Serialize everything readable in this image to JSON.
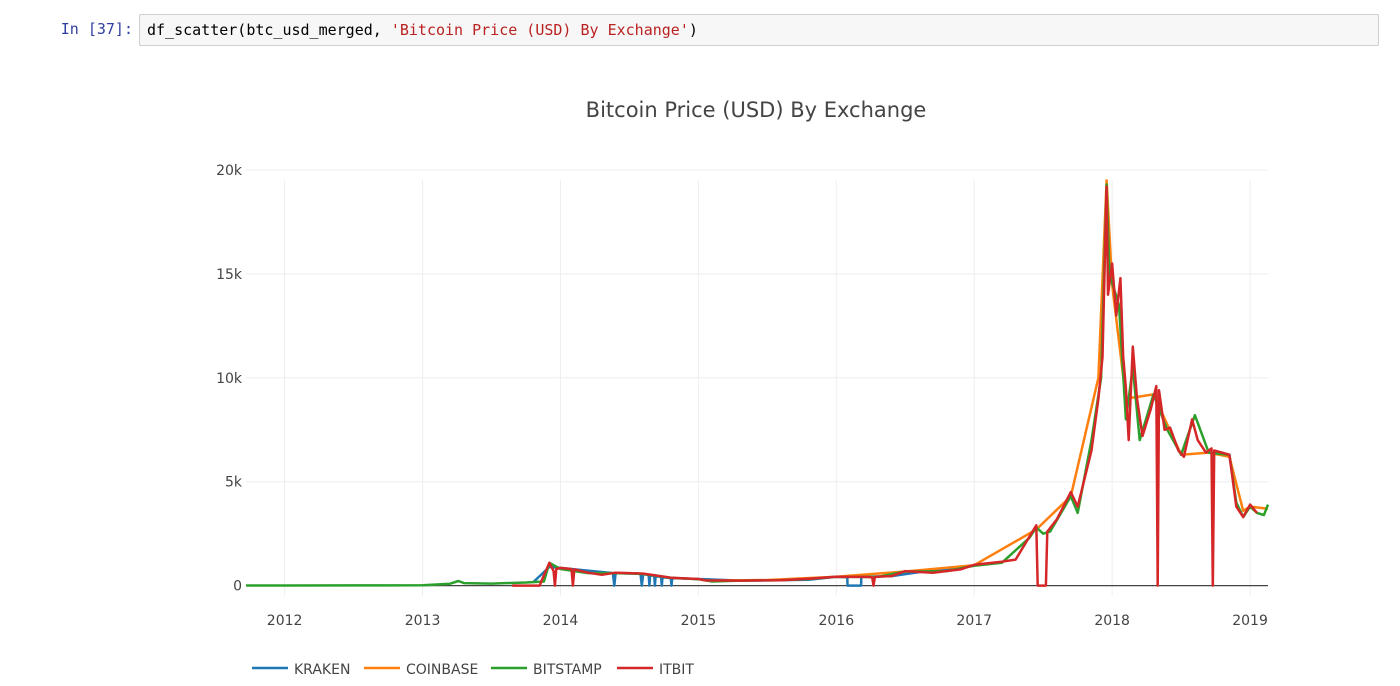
{
  "cell": {
    "prompt": "In [37]:",
    "code_prefix": "df_scatter(btc_usd_merged, ",
    "code_string": "'Bitcoin Price (USD) By Exchange'",
    "code_suffix": ")"
  },
  "chart_data": {
    "type": "line",
    "title": "Bitcoin Price (USD) By Exchange",
    "xlabel": "",
    "ylabel": "",
    "x_ticks": [
      "2012",
      "2013",
      "2014",
      "2015",
      "2016",
      "2017",
      "2018",
      "2019"
    ],
    "y_ticks": [
      "0",
      "5k",
      "10k",
      "15k",
      "20k"
    ],
    "xlim": [
      2011.72,
      2019.13
    ],
    "ylim": [
      -500,
      20000
    ],
    "grid": true,
    "legend_position": "bottom-left",
    "series": [
      {
        "name": "KRAKEN",
        "color": "#1f77b4",
        "points": [
          [
            2013.8,
            150
          ],
          [
            2013.92,
            900
          ],
          [
            2014.05,
            820
          ],
          [
            2014.38,
            600
          ],
          [
            2014.39,
            0
          ],
          [
            2014.4,
            600
          ],
          [
            2014.58,
            580
          ],
          [
            2014.59,
            0
          ],
          [
            2014.6,
            560
          ],
          [
            2014.64,
            500
          ],
          [
            2014.645,
            0
          ],
          [
            2014.65,
            480
          ],
          [
            2014.68,
            480
          ],
          [
            2014.685,
            0
          ],
          [
            2014.69,
            460
          ],
          [
            2014.73,
            420
          ],
          [
            2014.735,
            0
          ],
          [
            2014.74,
            400
          ],
          [
            2014.8,
            360
          ],
          [
            2014.805,
            0
          ],
          [
            2014.81,
            360
          ],
          [
            2015.0,
            320
          ],
          [
            2015.3,
            240
          ],
          [
            2015.8,
            280
          ],
          [
            2016.0,
            430
          ],
          [
            2016.08,
            400
          ],
          [
            2016.081,
            0
          ],
          [
            2016.18,
            0
          ],
          [
            2016.181,
            420
          ],
          [
            2016.4,
            460
          ],
          [
            2016.6,
            650
          ],
          [
            2017.0,
            960
          ]
        ]
      },
      {
        "name": "COINBASE",
        "color": "#ff7f0e",
        "points": [
          [
            2015.08,
            230
          ],
          [
            2015.5,
            270
          ],
          [
            2016.0,
            430
          ],
          [
            2016.5,
            680
          ],
          [
            2017.0,
            980
          ],
          [
            2017.45,
            2700
          ],
          [
            2017.7,
            4300
          ],
          [
            2017.9,
            10000
          ],
          [
            2017.96,
            19500
          ],
          [
            2018.0,
            14500
          ],
          [
            2018.1,
            9000
          ],
          [
            2018.3,
            9200
          ],
          [
            2018.5,
            6300
          ],
          [
            2018.7,
            6400
          ],
          [
            2018.85,
            6200
          ],
          [
            2018.95,
            3600
          ],
          [
            2019.0,
            3800
          ],
          [
            2019.13,
            3700
          ]
        ]
      },
      {
        "name": "BITSTAMP",
        "color": "#2ca02c",
        "points": [
          [
            2011.72,
            5
          ],
          [
            2012.0,
            6
          ],
          [
            2012.5,
            8
          ],
          [
            2013.0,
            15
          ],
          [
            2013.2,
            90
          ],
          [
            2013.26,
            220
          ],
          [
            2013.3,
            120
          ],
          [
            2013.5,
            95
          ],
          [
            2013.75,
            150
          ],
          [
            2013.88,
            200
          ],
          [
            2013.92,
            1100
          ],
          [
            2014.0,
            800
          ],
          [
            2014.2,
            600
          ],
          [
            2014.4,
            600
          ],
          [
            2014.6,
            560
          ],
          [
            2014.8,
            380
          ],
          [
            2015.0,
            310
          ],
          [
            2015.1,
            200
          ],
          [
            2015.3,
            240
          ],
          [
            2015.6,
            260
          ],
          [
            2015.8,
            320
          ],
          [
            2016.0,
            430
          ],
          [
            2016.3,
            420
          ],
          [
            2016.5,
            680
          ],
          [
            2016.8,
            700
          ],
          [
            2017.0,
            960
          ],
          [
            2017.2,
            1100
          ],
          [
            2017.4,
            2300
          ],
          [
            2017.45,
            2800
          ],
          [
            2017.5,
            2500
          ],
          [
            2017.55,
            2600
          ],
          [
            2017.7,
            4300
          ],
          [
            2017.75,
            3500
          ],
          [
            2017.85,
            7000
          ],
          [
            2017.92,
            10000
          ],
          [
            2017.96,
            19300
          ],
          [
            2017.98,
            15000
          ],
          [
            2018.05,
            13500
          ],
          [
            2018.1,
            8000
          ],
          [
            2018.15,
            10500
          ],
          [
            2018.2,
            7000
          ],
          [
            2018.3,
            9200
          ],
          [
            2018.4,
            7500
          ],
          [
            2018.5,
            6300
          ],
          [
            2018.6,
            8200
          ],
          [
            2018.7,
            6400
          ],
          [
            2018.85,
            6300
          ],
          [
            2018.9,
            4000
          ],
          [
            2018.95,
            3300
          ],
          [
            2019.0,
            3800
          ],
          [
            2019.05,
            3500
          ],
          [
            2019.1,
            3400
          ],
          [
            2019.13,
            3900
          ]
        ]
      },
      {
        "name": "ITBIT",
        "color": "#d62728",
        "points": [
          [
            2013.65,
            0
          ],
          [
            2013.85,
            0
          ],
          [
            2013.86,
            200
          ],
          [
            2013.92,
            1100
          ],
          [
            2013.95,
            700
          ],
          [
            2013.96,
            0
          ],
          [
            2013.97,
            800
          ],
          [
            2014.0,
            850
          ],
          [
            2014.08,
            800
          ],
          [
            2014.09,
            0
          ],
          [
            2014.1,
            780
          ],
          [
            2014.2,
            620
          ],
          [
            2014.3,
            520
          ],
          [
            2014.4,
            620
          ],
          [
            2014.5,
            600
          ],
          [
            2014.6,
            580
          ],
          [
            2014.7,
            480
          ],
          [
            2014.8,
            380
          ],
          [
            2015.0,
            320
          ],
          [
            2015.05,
            250
          ],
          [
            2015.3,
            240
          ],
          [
            2015.6,
            260
          ],
          [
            2015.8,
            330
          ],
          [
            2016.0,
            430
          ],
          [
            2016.2,
            420
          ],
          [
            2016.26,
            400
          ],
          [
            2016.27,
            0
          ],
          [
            2016.28,
            420
          ],
          [
            2016.4,
            460
          ],
          [
            2016.5,
            700
          ],
          [
            2016.7,
            620
          ],
          [
            2016.9,
            780
          ],
          [
            2017.0,
            1000
          ],
          [
            2017.2,
            1150
          ],
          [
            2017.3,
            1250
          ],
          [
            2017.45,
            2900
          ],
          [
            2017.46,
            0
          ],
          [
            2017.52,
            0
          ],
          [
            2017.53,
            2600
          ],
          [
            2017.6,
            3200
          ],
          [
            2017.7,
            4500
          ],
          [
            2017.75,
            3800
          ],
          [
            2017.85,
            6500
          ],
          [
            2017.9,
            9000
          ],
          [
            2017.93,
            11000
          ],
          [
            2017.96,
            19200
          ],
          [
            2017.97,
            14000
          ],
          [
            2018.0,
            15500
          ],
          [
            2018.03,
            13000
          ],
          [
            2018.06,
            14800
          ],
          [
            2018.08,
            11000
          ],
          [
            2018.1,
            9500
          ],
          [
            2018.12,
            7000
          ],
          [
            2018.15,
            11500
          ],
          [
            2018.18,
            9000
          ],
          [
            2018.22,
            7200
          ],
          [
            2018.28,
            8500
          ],
          [
            2018.32,
            9600
          ],
          [
            2018.33,
            0
          ],
          [
            2018.34,
            9400
          ],
          [
            2018.38,
            7500
          ],
          [
            2018.42,
            7600
          ],
          [
            2018.48,
            6500
          ],
          [
            2018.52,
            6200
          ],
          [
            2018.58,
            8000
          ],
          [
            2018.62,
            7000
          ],
          [
            2018.68,
            6400
          ],
          [
            2018.72,
            6600
          ],
          [
            2018.73,
            0
          ],
          [
            2018.74,
            6500
          ],
          [
            2018.85,
            6300
          ],
          [
            2018.9,
            3800
          ],
          [
            2018.95,
            3300
          ],
          [
            2019.0,
            3900
          ],
          [
            2019.05,
            3500
          ]
        ]
      }
    ]
  },
  "colors": {
    "prompt": "#303F9F",
    "code_string": "#BA2121",
    "grid": "#eeeeee"
  }
}
